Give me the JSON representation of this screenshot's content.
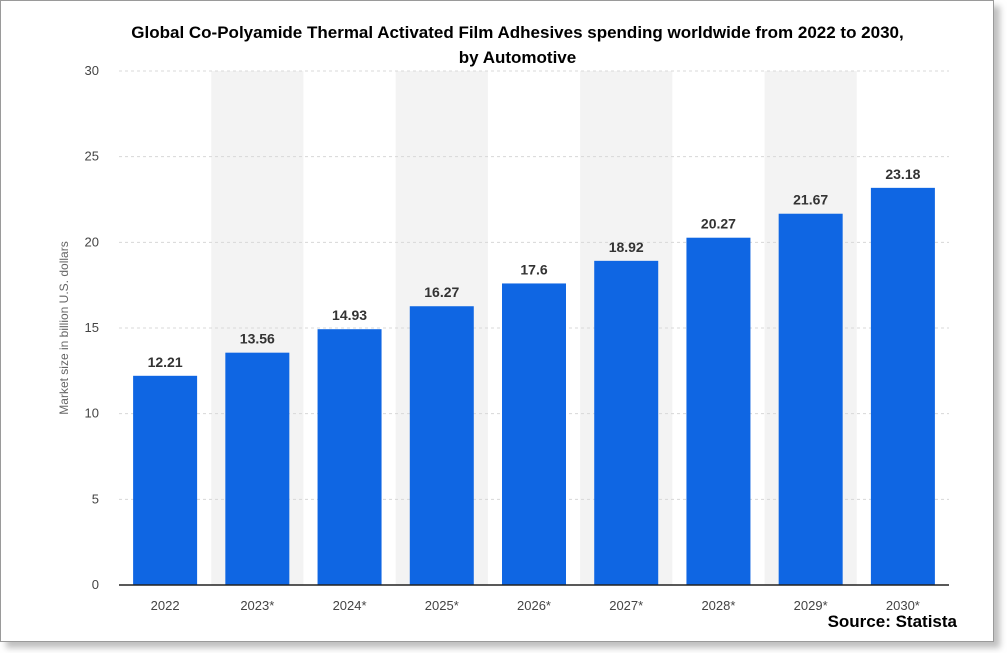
{
  "chart_data": {
    "type": "bar",
    "title": "Global Co-Polyamide Thermal Activated Film Adhesives spending worldwide from 2022 to 2030, by Automotive",
    "title_lines": [
      "Global Co-Polyamide Thermal Activated Film Adhesives spending worldwide from 2022 to 2030,",
      "by Automotive"
    ],
    "xlabel": "",
    "ylabel": "Market size in billion U.S. dollars",
    "categories": [
      "2022",
      "2023*",
      "2024*",
      "2025*",
      "2026*",
      "2027*",
      "2028*",
      "2029*",
      "2030*"
    ],
    "values": [
      12.21,
      13.56,
      14.93,
      16.27,
      17.6,
      18.92,
      20.27,
      21.67,
      23.18
    ],
    "value_labels": [
      "12.21",
      "13.56",
      "14.93",
      "16.27",
      "17.6",
      "18.92",
      "20.27",
      "21.67",
      "23.18"
    ],
    "ylim": [
      0,
      30
    ],
    "yticks": [
      0,
      5,
      10,
      15,
      20,
      25,
      30
    ],
    "grid": true,
    "bar_color": "#0f66e3",
    "band_color": "#f3f3f3",
    "grid_color": "#d8d8d8",
    "source": "Source: Statista"
  }
}
